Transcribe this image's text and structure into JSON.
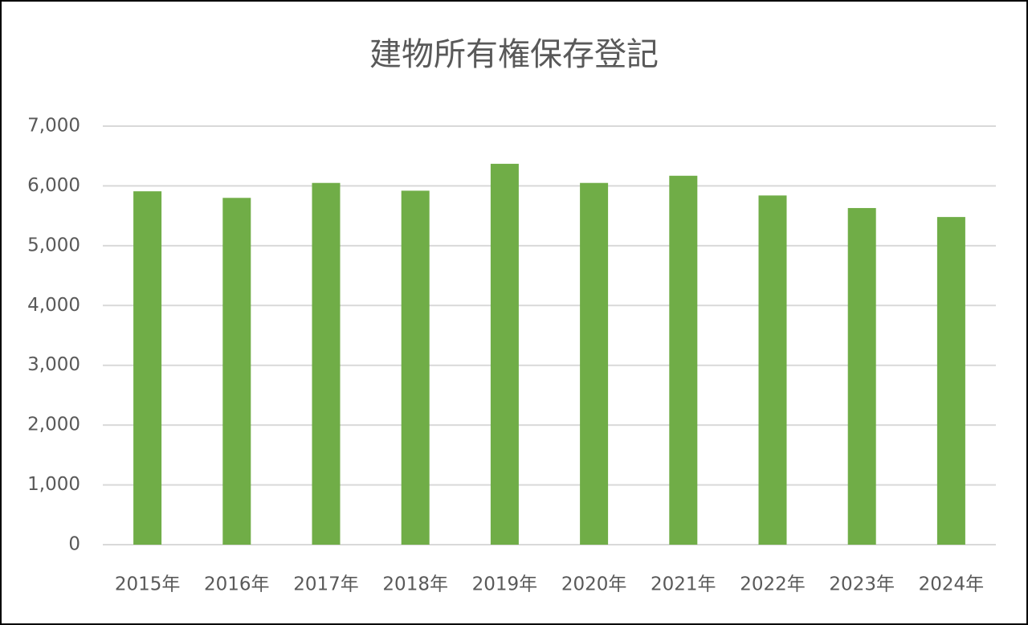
{
  "chart_data": {
    "type": "bar",
    "title": "建物所有権保存登記",
    "categories": [
      "2015年",
      "2016年",
      "2017年",
      "2018年",
      "2019年",
      "2020年",
      "2021年",
      "2022年",
      "2023年",
      "2024年"
    ],
    "values": [
      5910,
      5800,
      6050,
      5920,
      6370,
      6050,
      6170,
      5840,
      5630,
      5480
    ],
    "color": "#70ad47",
    "ylim": [
      0,
      7000
    ],
    "yticks": [
      0,
      {
        "value": 1000,
        "label": "1,000"
      },
      {
        "value": 2000,
        "label": "2,000"
      },
      {
        "value": 3000,
        "label": "3,000"
      },
      {
        "value": 4000,
        "label": "4,000"
      },
      {
        "value": 5000,
        "label": "5,000"
      },
      {
        "value": 6000,
        "label": "6,000"
      },
      {
        "value": 7000,
        "label": "7,000"
      }
    ],
    "grid": true
  }
}
